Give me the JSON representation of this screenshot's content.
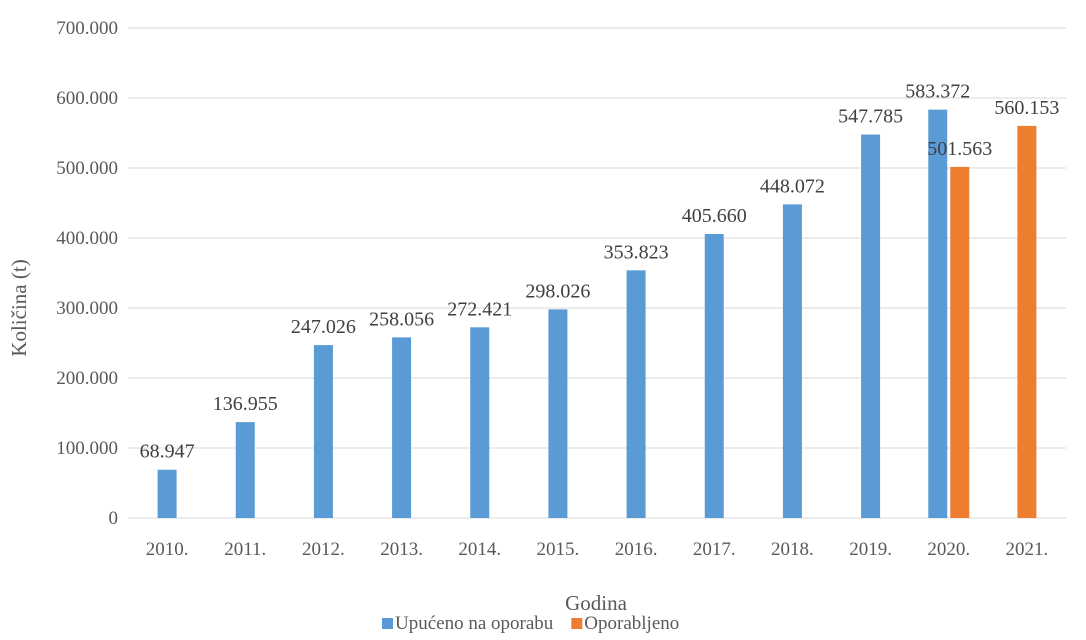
{
  "chart_data": {
    "type": "bar",
    "title": "",
    "xlabel": "Godina",
    "ylabel": "Količina (t)",
    "ylim": [
      0,
      700000
    ],
    "y_ticks": [
      0,
      100000,
      200000,
      300000,
      400000,
      500000,
      600000,
      700000
    ],
    "y_tick_labels": [
      "0",
      "100.000",
      "200.000",
      "300.000",
      "400.000",
      "500.000",
      "600.000",
      "700.000"
    ],
    "categories": [
      "2010.",
      "2011.",
      "2012.",
      "2013.",
      "2014.",
      "2015.",
      "2016.",
      "2017.",
      "2018.",
      "2019.",
      "2020.",
      "2021."
    ],
    "grid": true,
    "legend_position": "bottom",
    "series": [
      {
        "name": "Upućeno na oporabu",
        "color": "#5b9bd5",
        "values": [
          68947,
          136955,
          247026,
          258056,
          272421,
          298026,
          353823,
          405660,
          448072,
          547785,
          583372,
          null
        ],
        "labels": [
          "68.947",
          "136.955",
          "247.026",
          "258.056",
          "272.421",
          "298.026",
          "353.823",
          "405.660",
          "448.072",
          "547.785",
          "583.372",
          ""
        ]
      },
      {
        "name": "Oporabljeno",
        "color": "#ed7d31",
        "values": [
          null,
          null,
          null,
          null,
          null,
          null,
          null,
          null,
          null,
          null,
          501563,
          560153
        ],
        "labels": [
          "",
          "",
          "",
          "",
          "",
          "",
          "",
          "",
          "",
          "",
          "501.563",
          "560.153"
        ]
      }
    ]
  }
}
